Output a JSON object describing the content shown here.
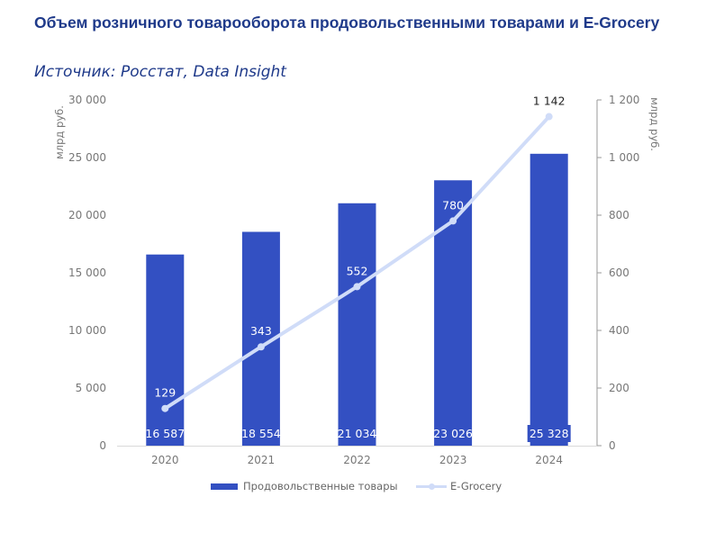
{
  "title": "Объем розничного товарооборота продовольственными товарами и E-Grocery",
  "subtitle": "Источник: Росстат, Data Insight",
  "colors": {
    "bar": "#3350c2",
    "line": "#d0dcf8",
    "axis_text": "#777777",
    "title": "#1f3a8a"
  },
  "chart_data": {
    "type": "bar+line",
    "categories": [
      "2020",
      "2021",
      "2022",
      "2023",
      "2024"
    ],
    "series": [
      {
        "name": "Продовольственные товары",
        "type": "bar",
        "axis": "left",
        "values": [
          16587,
          18554,
          21034,
          23026,
          25328
        ],
        "labels": [
          "16 587",
          "18 554",
          "21 034",
          "23 026",
          "25 328"
        ]
      },
      {
        "name": "E-Grocery",
        "type": "line",
        "axis": "right",
        "values": [
          129,
          343,
          552,
          780,
          1142
        ],
        "labels": [
          "129",
          "343",
          "552",
          "780",
          "1 142"
        ]
      }
    ],
    "y_left": {
      "label": "млрд руб.",
      "range": [
        0,
        30000
      ],
      "ticks": [
        0,
        5000,
        10000,
        15000,
        20000,
        25000,
        30000
      ],
      "tick_labels": [
        "0",
        "5 000",
        "10 000",
        "15 000",
        "20 000",
        "25 000",
        "30 000"
      ]
    },
    "y_right": {
      "label": "млрд руб.",
      "range": [
        0,
        1200
      ],
      "ticks": [
        0,
        200,
        400,
        600,
        800,
        1000,
        1200
      ],
      "tick_labels": [
        "0",
        "200",
        "400",
        "600",
        "800",
        "1 000",
        "1 200"
      ]
    },
    "grid": false,
    "legend_position": "bottom"
  }
}
